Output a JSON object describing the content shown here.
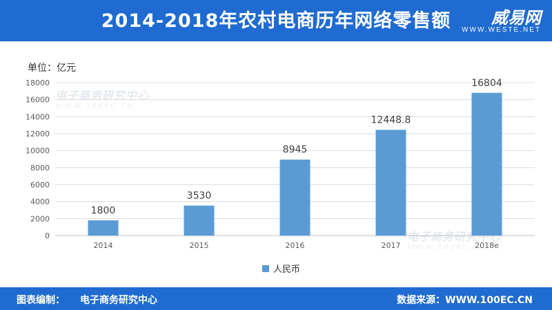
{
  "header": {
    "title": "2014-2018年农村电商历年网络零售额",
    "logo_name": "威易网",
    "logo_url": "WWW.WESTE.NET"
  },
  "unit_label": "单位：亿元",
  "watermark": {
    "name": "电子商务研究中心",
    "url": "WWW.100EC.CN"
  },
  "footer": {
    "compiler_label": "图表编制：",
    "compiler": "电子商务研究中心",
    "source_label": "数据来源：",
    "source": "WWW.100EC.CN"
  },
  "colors": {
    "header_bg": "#1f6bd1",
    "bar": "#5b9bd5",
    "grid": "#d9d9d9"
  },
  "chart_data": {
    "type": "bar",
    "categories": [
      "2014",
      "2015",
      "2016",
      "2017",
      "2018e"
    ],
    "series": [
      {
        "name": "人民币",
        "values": [
          1800,
          3530,
          8945,
          12448.8,
          16804
        ],
        "labels": [
          "1800",
          "3530",
          "8945",
          "12448.8",
          "16804"
        ]
      }
    ],
    "y_ticks": [
      "0",
      "2000",
      "4000",
      "6000",
      "8000",
      "10000",
      "12000",
      "14000",
      "16000",
      "18000"
    ],
    "ylim": [
      0,
      18000
    ],
    "grid": true,
    "legend_position": "bottom"
  }
}
